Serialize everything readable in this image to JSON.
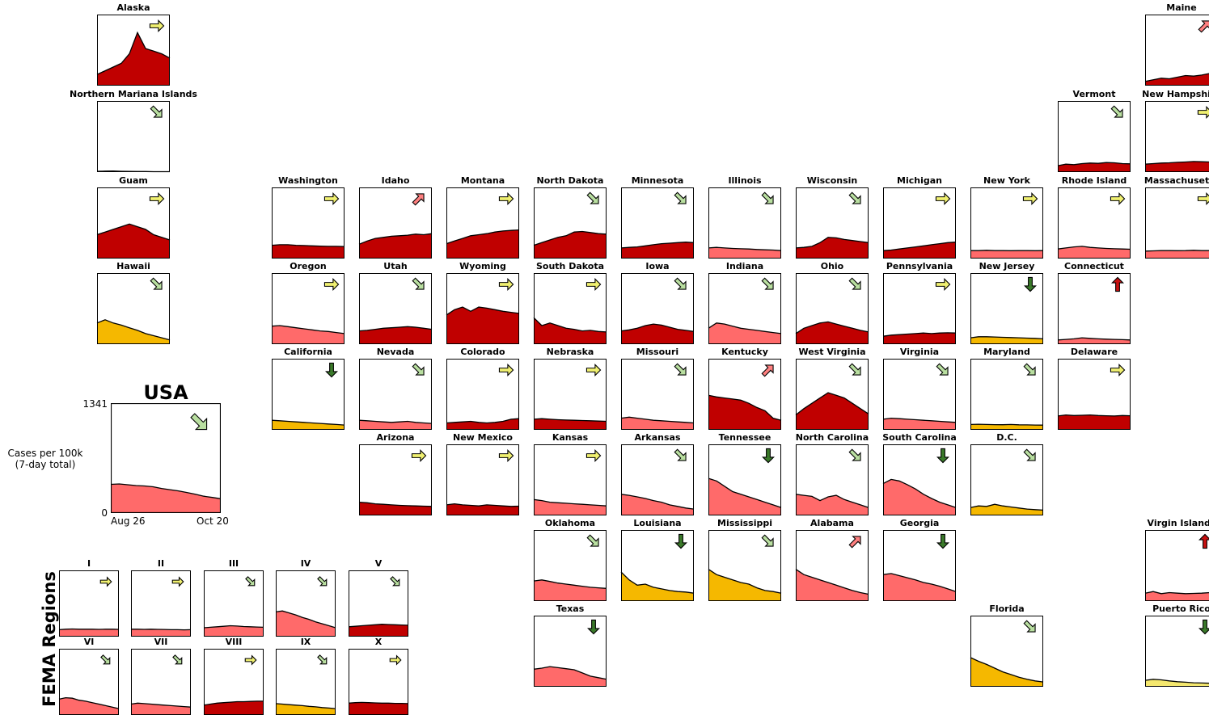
{
  "colors": {
    "very_high": "#c00000",
    "high": "#ff6a6a",
    "moderate": "#f5b800",
    "low": "#f4e76e",
    "arrow_flat": "#f0f070",
    "arrow_down": "#b9dfa0",
    "arrow_strong_down": "#3a7a2a",
    "arrow_up": "#ff8080",
    "arrow_strong_up": "#c81010",
    "arrow_orange": "#f2a200"
  },
  "usa": {
    "title": "USA",
    "y_max_label": "1341",
    "y_min_label": "0",
    "x_start_label": "Aug 26",
    "x_end_label": "Oct 20",
    "ylabel_line1": "Cases per 100k",
    "ylabel_line2": "(7-day total)"
  },
  "fema_label": "FEMA Regions",
  "chart_data": {
    "type": "area",
    "y_unit": "Cases per 100k (7-day total)",
    "ylim": [
      0,
      1341
    ],
    "x_range": [
      "Aug 26",
      "Oct 20"
    ],
    "usa": {
      "name": "USA",
      "level": "high",
      "trend": "down",
      "values": [
        350,
        355,
        345,
        335,
        330,
        320,
        300,
        285,
        270,
        250,
        230,
        205,
        190,
        175
      ]
    },
    "states": [
      {
        "name": "Alaska",
        "level": "very_high",
        "trend": "flat",
        "values": [
          210,
          280,
          350,
          420,
          600,
          1000,
          700,
          650,
          600,
          520
        ]
      },
      {
        "name": "Maine",
        "level": "very_high",
        "trend": "up",
        "values": [
          80,
          110,
          140,
          130,
          160,
          190,
          180,
          200,
          230,
          190
        ]
      },
      {
        "name": "Northern Mariana Islands",
        "level": "low",
        "trend": "down",
        "values": [
          15,
          18,
          20,
          15,
          12,
          10,
          10,
          8,
          8,
          7
        ]
      },
      {
        "name": "Vermont",
        "level": "very_high",
        "trend": "down",
        "values": [
          120,
          150,
          140,
          160,
          170,
          165,
          180,
          175,
          160,
          155
        ]
      },
      {
        "name": "New Hampshire",
        "level": "very_high",
        "trend": "flat",
        "values": [
          150,
          160,
          170,
          175,
          185,
          190,
          200,
          195,
          190,
          185
        ]
      },
      {
        "name": "Guam",
        "level": "very_high",
        "trend": "flat",
        "values": [
          450,
          500,
          550,
          600,
          650,
          600,
          550,
          450,
          400,
          350
        ]
      },
      {
        "name": "Washington",
        "level": "very_high",
        "trend": "flat",
        "values": [
          250,
          260,
          260,
          250,
          245,
          240,
          235,
          230,
          230,
          225
        ]
      },
      {
        "name": "Idaho",
        "level": "very_high",
        "trend": "up",
        "values": [
          270,
          330,
          380,
          400,
          420,
          430,
          440,
          460,
          450,
          470
        ]
      },
      {
        "name": "Montana",
        "level": "very_high",
        "trend": "flat",
        "values": [
          280,
          330,
          380,
          430,
          450,
          470,
          500,
          520,
          530,
          540
        ]
      },
      {
        "name": "North Dakota",
        "level": "very_high",
        "trend": "down",
        "values": [
          250,
          300,
          350,
          400,
          430,
          500,
          510,
          490,
          470,
          460
        ]
      },
      {
        "name": "Minnesota",
        "level": "very_high",
        "trend": "down",
        "values": [
          200,
          210,
          220,
          240,
          260,
          280,
          290,
          300,
          310,
          300
        ]
      },
      {
        "name": "Illinois",
        "level": "high",
        "trend": "down",
        "values": [
          200,
          210,
          200,
          190,
          185,
          180,
          170,
          165,
          160,
          150
        ]
      },
      {
        "name": "Wisconsin",
        "level": "very_high",
        "trend": "down",
        "values": [
          200,
          210,
          230,
          300,
          400,
          390,
          360,
          340,
          320,
          300
        ]
      },
      {
        "name": "Michigan",
        "level": "very_high",
        "trend": "flat",
        "values": [
          150,
          160,
          180,
          200,
          220,
          240,
          260,
          280,
          300,
          310
        ]
      },
      {
        "name": "New York",
        "level": "high",
        "trend": "flat",
        "values": [
          150,
          150,
          155,
          150,
          150,
          148,
          150,
          150,
          148,
          150
        ]
      },
      {
        "name": "Rhode Island",
        "level": "high",
        "trend": "flat",
        "values": [
          180,
          200,
          220,
          230,
          210,
          200,
          190,
          185,
          180,
          175
        ]
      },
      {
        "name": "Massachusetts",
        "level": "high",
        "trend": "flat",
        "values": [
          140,
          145,
          150,
          150,
          148,
          150,
          155,
          150,
          150,
          148
        ]
      },
      {
        "name": "Hawaii",
        "level": "moderate",
        "trend": "down",
        "values": [
          400,
          460,
          400,
          360,
          310,
          260,
          200,
          160,
          120,
          80
        ]
      },
      {
        "name": "Oregon",
        "level": "high",
        "trend": "flat",
        "values": [
          340,
          350,
          330,
          310,
          290,
          270,
          250,
          240,
          220,
          200
        ]
      },
      {
        "name": "Utah",
        "level": "very_high",
        "trend": "down",
        "values": [
          250,
          260,
          280,
          300,
          310,
          320,
          330,
          320,
          300,
          280
        ]
      },
      {
        "name": "Wyoming",
        "level": "very_high",
        "trend": "flat",
        "values": [
          550,
          650,
          700,
          620,
          700,
          680,
          650,
          620,
          600,
          580
        ]
      },
      {
        "name": "South Dakota",
        "level": "very_high",
        "trend": "flat",
        "values": [
          500,
          350,
          400,
          350,
          300,
          280,
          250,
          260,
          240,
          230
        ]
      },
      {
        "name": "Iowa",
        "level": "very_high",
        "trend": "down",
        "values": [
          250,
          270,
          300,
          350,
          380,
          360,
          320,
          280,
          260,
          240
        ]
      },
      {
        "name": "Indiana",
        "level": "high",
        "trend": "down",
        "values": [
          300,
          400,
          380,
          340,
          300,
          280,
          260,
          240,
          220,
          200
        ]
      },
      {
        "name": "Ohio",
        "level": "very_high",
        "trend": "down",
        "values": [
          200,
          300,
          350,
          400,
          420,
          380,
          340,
          300,
          260,
          230
        ]
      },
      {
        "name": "Pennsylvania",
        "level": "very_high",
        "trend": "flat",
        "values": [
          150,
          170,
          180,
          190,
          200,
          210,
          200,
          210,
          215,
          210
        ]
      },
      {
        "name": "New Jersey",
        "level": "moderate",
        "trend": "strong_down",
        "values": [
          120,
          140,
          140,
          135,
          130,
          125,
          120,
          115,
          110,
          100
        ]
      },
      {
        "name": "Connecticut",
        "level": "high",
        "trend": "strong_up",
        "values": [
          80,
          90,
          100,
          120,
          110,
          100,
          95,
          90,
          85,
          80
        ]
      },
      {
        "name": "California",
        "level": "moderate",
        "trend": "strong_down",
        "values": [
          180,
          170,
          160,
          150,
          140,
          130,
          120,
          110,
          100,
          90
        ]
      },
      {
        "name": "Nevada",
        "level": "high",
        "trend": "down",
        "values": [
          180,
          170,
          160,
          150,
          140,
          150,
          160,
          140,
          130,
          120
        ]
      },
      {
        "name": "Colorado",
        "level": "very_high",
        "trend": "flat",
        "values": [
          130,
          140,
          150,
          160,
          140,
          130,
          140,
          160,
          200,
          210
        ]
      },
      {
        "name": "Nebraska",
        "level": "very_high",
        "trend": "flat",
        "values": [
          200,
          210,
          200,
          190,
          185,
          180,
          175,
          170,
          165,
          160
        ]
      },
      {
        "name": "Missouri",
        "level": "high",
        "trend": "down",
        "values": [
          220,
          240,
          220,
          200,
          180,
          170,
          160,
          150,
          140,
          130
        ]
      },
      {
        "name": "Kentucky",
        "level": "very_high",
        "trend": "up",
        "values": [
          650,
          620,
          600,
          580,
          560,
          500,
          420,
          360,
          220,
          180
        ]
      },
      {
        "name": "West Virginia",
        "level": "very_high",
        "trend": "down",
        "values": [
          280,
          400,
          500,
          600,
          700,
          650,
          600,
          500,
          400,
          300
        ]
      },
      {
        "name": "Virginia",
        "level": "high",
        "trend": "down",
        "values": [
          200,
          220,
          210,
          200,
          190,
          180,
          170,
          160,
          150,
          140
        ]
      },
      {
        "name": "Maryland",
        "level": "moderate",
        "trend": "down",
        "values": [
          100,
          105,
          100,
          98,
          96,
          100,
          95,
          93,
          90,
          88
        ]
      },
      {
        "name": "Delaware",
        "level": "very_high",
        "trend": "flat",
        "values": [
          260,
          280,
          270,
          275,
          280,
          270,
          265,
          260,
          270,
          265
        ]
      },
      {
        "name": "Arizona",
        "level": "very_high",
        "trend": "flat",
        "values": [
          250,
          240,
          220,
          210,
          200,
          190,
          185,
          180,
          175,
          170
        ]
      },
      {
        "name": "New Mexico",
        "level": "very_high",
        "trend": "flat",
        "values": [
          200,
          220,
          200,
          190,
          180,
          200,
          190,
          180,
          170,
          175
        ]
      },
      {
        "name": "Kansas",
        "level": "high",
        "trend": "flat",
        "values": [
          300,
          280,
          250,
          240,
          230,
          220,
          210,
          200,
          190,
          180
        ]
      },
      {
        "name": "Arkansas",
        "level": "high",
        "trend": "down",
        "values": [
          400,
          380,
          350,
          320,
          280,
          250,
          200,
          170,
          140,
          120
        ]
      },
      {
        "name": "Tennessee",
        "level": "high",
        "trend": "strong_down",
        "values": [
          700,
          650,
          550,
          450,
          400,
          350,
          300,
          250,
          200,
          150
        ]
      },
      {
        "name": "North Carolina",
        "level": "high",
        "trend": "down",
        "values": [
          400,
          380,
          360,
          280,
          350,
          380,
          300,
          250,
          200,
          150
        ]
      },
      {
        "name": "South Carolina",
        "level": "high",
        "trend": "strong_down",
        "values": [
          600,
          680,
          650,
          580,
          500,
          400,
          320,
          250,
          200,
          150
        ]
      },
      {
        "name": "D.C.",
        "level": "moderate",
        "trend": "down",
        "values": [
          150,
          180,
          170,
          210,
          180,
          160,
          140,
          120,
          110,
          100
        ]
      },
      {
        "name": "Oklahoma",
        "level": "high",
        "trend": "down",
        "values": [
          380,
          400,
          370,
          340,
          320,
          300,
          280,
          260,
          250,
          240
        ]
      },
      {
        "name": "Louisiana",
        "level": "moderate",
        "trend": "strong_down",
        "values": [
          550,
          400,
          300,
          320,
          260,
          230,
          200,
          180,
          170,
          150
        ]
      },
      {
        "name": "Mississippi",
        "level": "moderate",
        "trend": "down",
        "values": [
          600,
          500,
          450,
          400,
          350,
          320,
          250,
          200,
          180,
          150
        ]
      },
      {
        "name": "Alabama",
        "level": "high",
        "trend": "up",
        "values": [
          600,
          500,
          450,
          400,
          350,
          300,
          250,
          200,
          160,
          130
        ]
      },
      {
        "name": "Georgia",
        "level": "high",
        "trend": "strong_down",
        "values": [
          500,
          520,
          480,
          440,
          400,
          350,
          320,
          280,
          230,
          180
        ]
      },
      {
        "name": "Virgin Islands",
        "level": "high",
        "trend": "strong_up",
        "values": [
          150,
          180,
          140,
          160,
          150,
          140,
          145,
          150,
          160,
          155
        ]
      },
      {
        "name": "Texas",
        "level": "high",
        "trend": "strong_down",
        "values": [
          330,
          350,
          380,
          360,
          340,
          320,
          260,
          200,
          170,
          140
        ]
      },
      {
        "name": "Florida",
        "level": "moderate",
        "trend": "down",
        "values": [
          550,
          480,
          420,
          350,
          280,
          230,
          180,
          140,
          110,
          90
        ]
      },
      {
        "name": "Puerto Rico",
        "level": "low",
        "trend": "strong_down",
        "values": [
          120,
          140,
          130,
          110,
          95,
          85,
          75,
          70,
          65,
          60
        ]
      }
    ],
    "fema_regions": [
      {
        "name": "I",
        "level": "high",
        "trend": "flat",
        "values": [
          140,
          150,
          155,
          150,
          150,
          150,
          148,
          150,
          150,
          148
        ]
      },
      {
        "name": "II",
        "level": "high",
        "trend": "flat",
        "values": [
          150,
          150,
          148,
          150,
          148,
          145,
          140,
          140,
          138,
          140
        ]
      },
      {
        "name": "III",
        "level": "high",
        "trend": "down",
        "values": [
          180,
          190,
          200,
          210,
          220,
          215,
          205,
          200,
          195,
          190
        ]
      },
      {
        "name": "IV",
        "level": "high",
        "trend": "down",
        "values": [
          500,
          520,
          480,
          440,
          390,
          350,
          300,
          260,
          220,
          180
        ]
      },
      {
        "name": "V",
        "level": "very_high",
        "trend": "down",
        "values": [
          200,
          210,
          220,
          230,
          240,
          250,
          245,
          240,
          235,
          230
        ]
      },
      {
        "name": "VI",
        "level": "high",
        "trend": "down",
        "values": [
          320,
          350,
          340,
          300,
          280,
          250,
          220,
          190,
          160,
          130
        ]
      },
      {
        "name": "VII",
        "level": "high",
        "trend": "down",
        "values": [
          220,
          240,
          230,
          220,
          210,
          200,
          190,
          180,
          170,
          160
        ]
      },
      {
        "name": "VIII",
        "level": "very_high",
        "trend": "flat",
        "values": [
          200,
          220,
          240,
          250,
          260,
          270,
          270,
          275,
          280,
          280
        ]
      },
      {
        "name": "IX",
        "level": "moderate",
        "trend": "down",
        "values": [
          230,
          220,
          210,
          200,
          190,
          175,
          165,
          150,
          140,
          130
        ]
      },
      {
        "name": "X",
        "level": "very_high",
        "trend": "flat",
        "values": [
          240,
          250,
          255,
          250,
          245,
          240,
          240,
          235,
          235,
          230
        ]
      }
    ]
  }
}
